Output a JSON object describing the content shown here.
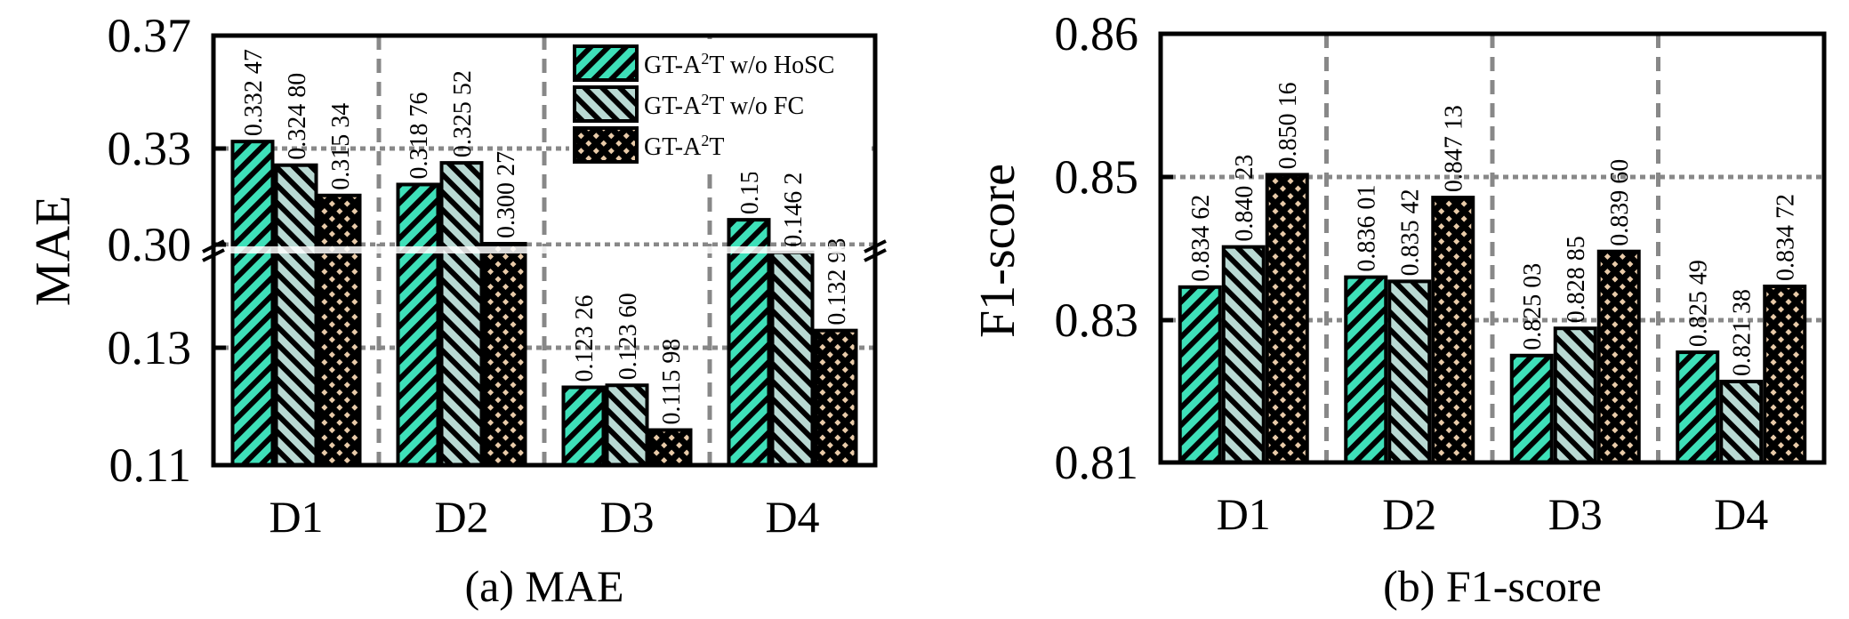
{
  "figure": {
    "legend": [
      {
        "name": "GT-A²T w/o HoSC",
        "base": "GT-A",
        "sup": "2",
        "rest": "T w/o HoSC",
        "color": "#3ee0b9",
        "pattern": "hatch-forward"
      },
      {
        "name": "GT-A²T w/o FC",
        "base": "GT-A",
        "sup": "2",
        "rest": "T w/o FC",
        "color": "#b9d9d3",
        "pattern": "hatch-backward"
      },
      {
        "name": "GT-A²T",
        "base": "GT-A",
        "sup": "2",
        "rest": "T",
        "color": "#e9cba9",
        "pattern": "dots"
      }
    ]
  },
  "chart_data": [
    {
      "type": "bar",
      "title": "(a) MAE",
      "xlabel": "",
      "ylabel": "MAE",
      "categories": [
        "D1",
        "D2",
        "D3",
        "D4"
      ],
      "yaxis": {
        "broken": true,
        "ticks": [
          "0.11",
          "0.13",
          "0.30",
          "0.33",
          "0.37"
        ],
        "tick_values": [
          0.11,
          0.13,
          0.3,
          0.33,
          0.37
        ],
        "lower_range": [
          0.11,
          0.13
        ],
        "upper_range": [
          0.3,
          0.37
        ]
      },
      "grid": true,
      "legend_position": "top-right",
      "series": [
        {
          "name": "GT-A²T w/o HoSC",
          "values": [
            0.33247,
            0.31876,
            0.12326,
            0.1518
          ],
          "labels": [
            "0.332 47",
            "0.318 76",
            "0.123 26",
            "0.151 80"
          ]
        },
        {
          "name": "GT-A²T w/o FC",
          "values": [
            0.3248,
            0.32552,
            0.1236,
            0.14625
          ],
          "labels": [
            "0.324 80",
            "0.325 52",
            "0.123 60",
            "0.146 25"
          ]
        },
        {
          "name": "GT-A²T",
          "values": [
            0.31534,
            0.30027,
            0.11598,
            0.13293
          ],
          "labels": [
            "0.315 34",
            "0.300 27",
            "0.115 98",
            "0.132 93"
          ]
        }
      ]
    },
    {
      "type": "bar",
      "title": "(b) F1-score",
      "xlabel": "",
      "ylabel": "F1-score",
      "categories": [
        "D1",
        "D2",
        "D3",
        "D4"
      ],
      "yaxis": {
        "broken": false,
        "ticks": [
          "0.81",
          "0.83",
          "0.85",
          "0.86"
        ],
        "tick_values": [
          0.81,
          0.83,
          0.85,
          0.86
        ]
      },
      "grid": true,
      "legend_position": "none",
      "series": [
        {
          "name": "GT-A²T w/o HoSC",
          "values": [
            0.83462,
            0.83601,
            0.82503,
            0.82549
          ],
          "labels": [
            "0.834 62",
            "0.836 01",
            "0.825 03",
            "0.825 49"
          ]
        },
        {
          "name": "GT-A²T w/o FC",
          "values": [
            0.84023,
            0.83542,
            0.82885,
            0.82138
          ],
          "labels": [
            "0.840 23",
            "0.835 42",
            "0.828 85",
            "0.821 38"
          ]
        },
        {
          "name": "GT-A²T",
          "values": [
            0.85016,
            0.84713,
            0.8396,
            0.83472
          ],
          "labels": [
            "0.850 16",
            "0.847 13",
            "0.839 60",
            "0.834 72"
          ]
        }
      ]
    }
  ]
}
